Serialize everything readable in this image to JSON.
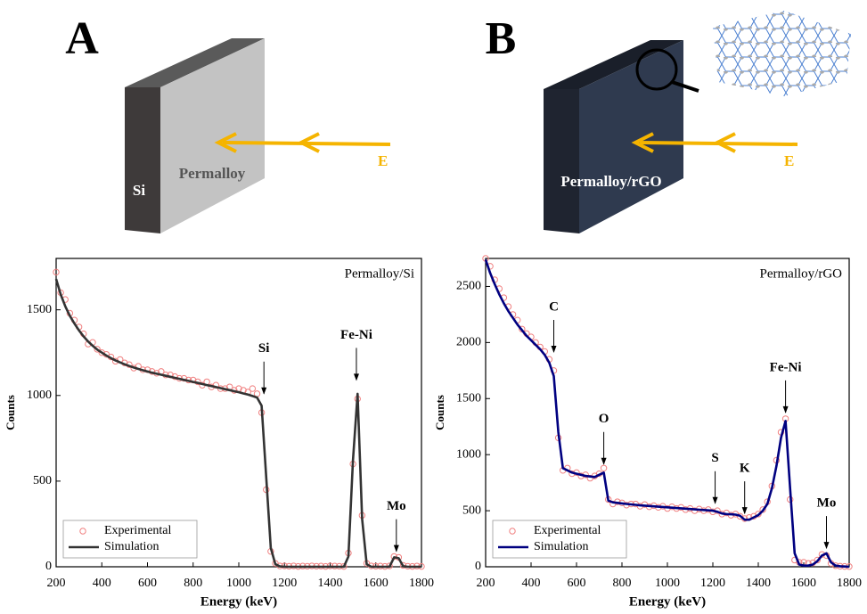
{
  "panels": [
    {
      "label": "A",
      "layer_labels": [
        "Si",
        "Permalloy"
      ],
      "beam_label": "E"
    },
    {
      "label": "B",
      "layer_labels": [
        "Permalloy/rGO"
      ],
      "beam_label": "E"
    }
  ],
  "chart_data": [
    {
      "type": "line",
      "title": "Permalloy/Si",
      "x_label": "Energy (keV)",
      "y_label": "Counts",
      "x": [
        200,
        220,
        240,
        260,
        280,
        300,
        320,
        340,
        360,
        380,
        400,
        420,
        440,
        460,
        480,
        500,
        520,
        540,
        560,
        580,
        600,
        620,
        640,
        660,
        680,
        700,
        720,
        740,
        760,
        780,
        800,
        820,
        840,
        860,
        880,
        900,
        920,
        940,
        960,
        980,
        1000,
        1020,
        1040,
        1060,
        1080,
        1100,
        1120,
        1140,
        1160,
        1180,
        1200,
        1220,
        1240,
        1260,
        1280,
        1300,
        1320,
        1340,
        1360,
        1380,
        1400,
        1420,
        1440,
        1460,
        1480,
        1500,
        1520,
        1540,
        1560,
        1580,
        1600,
        1620,
        1640,
        1660,
        1680,
        1700,
        1720,
        1740,
        1760,
        1780,
        1800
      ],
      "series": [
        {
          "name": "Experimental",
          "style": "markers",
          "color": "#f08080",
          "values": [
            1720,
            1600,
            1560,
            1480,
            1440,
            1400,
            1360,
            1300,
            1310,
            1270,
            1250,
            1240,
            1225,
            1200,
            1210,
            1190,
            1180,
            1160,
            1170,
            1150,
            1150,
            1140,
            1130,
            1140,
            1120,
            1120,
            1110,
            1100,
            1100,
            1090,
            1090,
            1080,
            1060,
            1080,
            1050,
            1060,
            1040,
            1040,
            1050,
            1030,
            1040,
            1030,
            1020,
            1040,
            1010,
            900,
            450,
            90,
            20,
            5,
            5,
            3,
            5,
            2,
            4,
            3,
            5,
            3,
            4,
            2,
            5,
            4,
            3,
            2,
            80,
            600,
            980,
            300,
            20,
            5,
            3,
            4,
            2,
            5,
            60,
            55,
            8,
            3,
            2,
            4,
            2
          ]
        },
        {
          "name": "Simulation",
          "style": "line",
          "color": "#333333",
          "values": [
            1680,
            1590,
            1520,
            1465,
            1420,
            1380,
            1345,
            1315,
            1290,
            1268,
            1250,
            1233,
            1218,
            1205,
            1193,
            1182,
            1172,
            1163,
            1155,
            1147,
            1140,
            1133,
            1127,
            1121,
            1115,
            1109,
            1103,
            1097,
            1091,
            1085,
            1079,
            1073,
            1067,
            1061,
            1055,
            1049,
            1043,
            1037,
            1031,
            1025,
            1019,
            1012,
            1005,
            997,
            988,
            940,
            520,
            110,
            15,
            2,
            0,
            0,
            0,
            0,
            0,
            0,
            0,
            0,
            0,
            0,
            0,
            0,
            0,
            0,
            60,
            620,
            1010,
            280,
            15,
            0,
            0,
            0,
            0,
            0,
            55,
            50,
            3,
            0,
            0,
            0,
            0
          ]
        }
      ],
      "annotations": [
        {
          "text": "Si",
          "x": 1110,
          "y": 1000
        },
        {
          "text": "Fe-Ni",
          "x": 1515,
          "y": 1080
        },
        {
          "text": "Mo",
          "x": 1690,
          "y": 80
        }
      ],
      "xlim": [
        200,
        1800
      ],
      "xticks": [
        200,
        400,
        600,
        800,
        1000,
        1200,
        1400,
        1600,
        1800
      ],
      "ylim": [
        0,
        1800
      ],
      "yticks": [
        0,
        500,
        1000,
        1500
      ],
      "legend": "lower left"
    },
    {
      "type": "line",
      "title": "Permalloy/rGO",
      "x_label": "Energy (keV)",
      "y_label": "Counts",
      "x": [
        200,
        220,
        240,
        260,
        280,
        300,
        320,
        340,
        360,
        380,
        400,
        420,
        440,
        460,
        480,
        500,
        520,
        540,
        560,
        580,
        600,
        620,
        640,
        660,
        680,
        700,
        720,
        740,
        760,
        780,
        800,
        820,
        840,
        860,
        880,
        900,
        920,
        940,
        960,
        980,
        1000,
        1020,
        1040,
        1060,
        1080,
        1100,
        1120,
        1140,
        1160,
        1180,
        1200,
        1220,
        1240,
        1260,
        1280,
        1300,
        1320,
        1340,
        1360,
        1380,
        1400,
        1420,
        1440,
        1460,
        1480,
        1500,
        1520,
        1540,
        1560,
        1580,
        1600,
        1620,
        1640,
        1660,
        1680,
        1700,
        1720,
        1740,
        1760,
        1780,
        1800
      ],
      "series": [
        {
          "name": "Experimental",
          "style": "markers",
          "color": "#f08080",
          "values": [
            2750,
            2680,
            2560,
            2480,
            2400,
            2320,
            2250,
            2200,
            2120,
            2080,
            2050,
            2000,
            1960,
            1920,
            1850,
            1750,
            1150,
            860,
            880,
            830,
            840,
            810,
            820,
            790,
            810,
            830,
            880,
            600,
            560,
            580,
            570,
            550,
            560,
            560,
            540,
            555,
            535,
            545,
            530,
            540,
            520,
            535,
            520,
            530,
            510,
            520,
            500,
            515,
            500,
            510,
            490,
            500,
            470,
            480,
            460,
            470,
            450,
            430,
            440,
            450,
            470,
            510,
            580,
            720,
            950,
            1200,
            1320,
            600,
            60,
            40,
            40,
            30,
            35,
            60,
            110,
            100,
            30,
            10,
            5,
            3,
            2
          ]
        },
        {
          "name": "Simulation",
          "style": "line",
          "color": "#000080",
          "values": [
            2740,
            2620,
            2520,
            2430,
            2350,
            2280,
            2220,
            2160,
            2110,
            2060,
            2020,
            1980,
            1940,
            1890,
            1820,
            1700,
            1200,
            880,
            860,
            840,
            830,
            820,
            810,
            805,
            800,
            820,
            840,
            590,
            575,
            570,
            565,
            560,
            556,
            552,
            548,
            545,
            542,
            539,
            536,
            533,
            530,
            527,
            524,
            521,
            518,
            515,
            512,
            509,
            506,
            503,
            500,
            490,
            475,
            470,
            468,
            465,
            455,
            420,
            420,
            440,
            460,
            500,
            560,
            700,
            900,
            1150,
            1300,
            700,
            120,
            20,
            10,
            10,
            20,
            50,
            100,
            120,
            40,
            10,
            5,
            2,
            0
          ]
        }
      ],
      "annotations": [
        {
          "text": "C",
          "x": 500,
          "y": 1900
        },
        {
          "text": "O",
          "x": 720,
          "y": 900
        },
        {
          "text": "S",
          "x": 1210,
          "y": 550
        },
        {
          "text": "K",
          "x": 1340,
          "y": 460
        },
        {
          "text": "Fe-Ni",
          "x": 1520,
          "y": 1360
        },
        {
          "text": "Mo",
          "x": 1700,
          "y": 150
        }
      ],
      "xlim": [
        200,
        1800
      ],
      "xticks": [
        200,
        400,
        600,
        800,
        1000,
        1200,
        1400,
        1600,
        1800
      ],
      "ylim": [
        0,
        2750
      ],
      "yticks": [
        0,
        500,
        1000,
        1500,
        2000,
        2500
      ],
      "legend": "lower left"
    }
  ]
}
